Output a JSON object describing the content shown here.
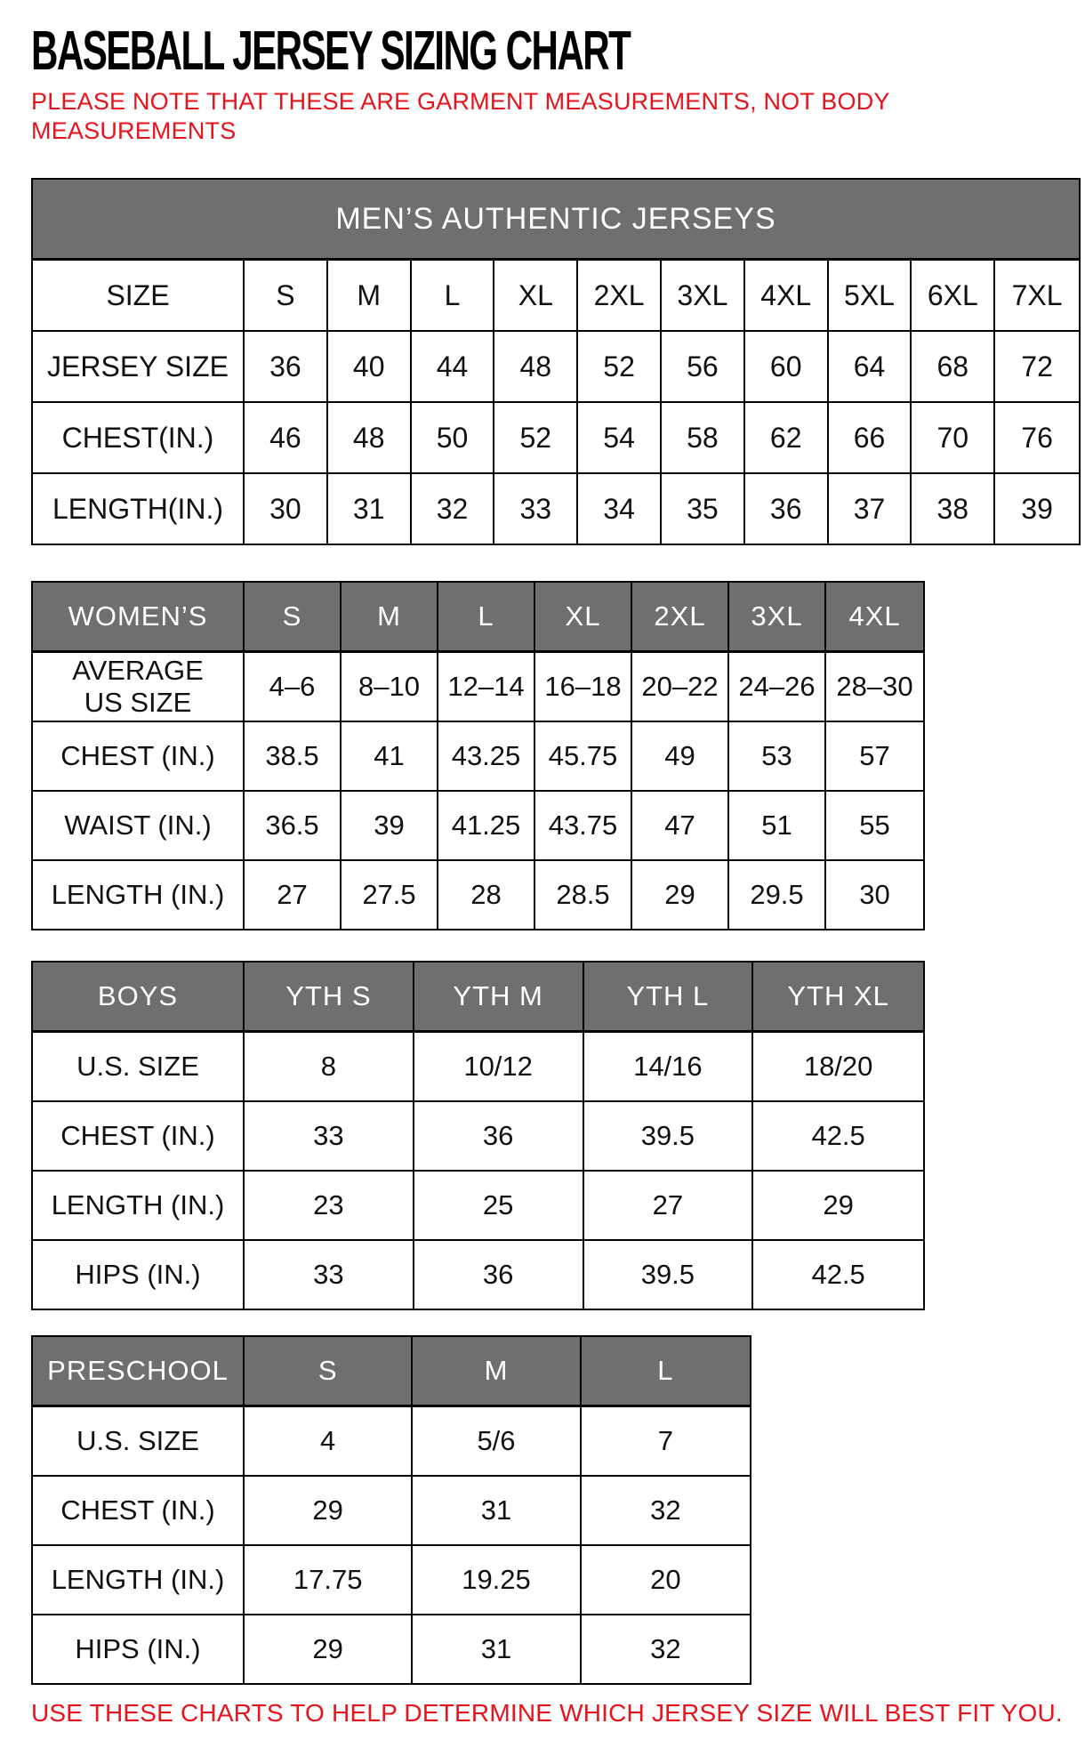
{
  "page": {
    "title": "BASEBALL JERSEY SIZING CHART",
    "note_line1": "PLEASE NOTE THAT THESE ARE GARMENT MEASUREMENTS, NOT BODY",
    "note_line2": "MEASUREMENTS",
    "footer": "USE THESE CHARTS TO HELP DETERMINE WHICH JERSEY SIZE WILL BEST FIT YOU.",
    "colors": {
      "accent_red": "#e8131b",
      "header_gray": "#6f6f6f",
      "border_black": "#000000",
      "background_white": "#ffffff"
    }
  },
  "tables": {
    "mens": {
      "title": "MEN’S AUTHENTIC JERSEYS",
      "size_row": {
        "label": "SIZE",
        "values": [
          "S",
          "M",
          "L",
          "XL",
          "2XL",
          "3XL",
          "4XL",
          "5XL",
          "6XL",
          "7XL"
        ]
      },
      "rows": [
        {
          "label": "JERSEY SIZE",
          "values": [
            "36",
            "40",
            "44",
            "48",
            "52",
            "56",
            "60",
            "64",
            "68",
            "72"
          ]
        },
        {
          "label": "CHEST(IN.)",
          "values": [
            "46",
            "48",
            "50",
            "52",
            "54",
            "58",
            "62",
            "66",
            "70",
            "76"
          ]
        },
        {
          "label": "LENGTH(IN.)",
          "values": [
            "30",
            "31",
            "32",
            "33",
            "34",
            "35",
            "36",
            "37",
            "38",
            "39"
          ]
        }
      ]
    },
    "womens": {
      "header_row": {
        "label": "WOMEN’S",
        "values": [
          "S",
          "M",
          "L",
          "XL",
          "2XL",
          "3XL",
          "4XL"
        ]
      },
      "rows": [
        {
          "label": "AVERAGE US SIZE",
          "values": [
            "4–6",
            "8–10",
            "12–14",
            "16–18",
            "20–22",
            "24–26",
            "28–30"
          ]
        },
        {
          "label": "CHEST (IN.)",
          "values": [
            "38.5",
            "41",
            "43.25",
            "45.75",
            "49",
            "53",
            "57"
          ]
        },
        {
          "label": "WAIST (IN.)",
          "values": [
            "36.5",
            "39",
            "41.25",
            "43.75",
            "47",
            "51",
            "55"
          ]
        },
        {
          "label": "LENGTH (IN.)",
          "values": [
            "27",
            "27.5",
            "28",
            "28.5",
            "29",
            "29.5",
            "30"
          ]
        }
      ]
    },
    "boys": {
      "header_row": {
        "label": "BOYS",
        "values": [
          "YTH S",
          "YTH M",
          "YTH L",
          "YTH XL"
        ]
      },
      "rows": [
        {
          "label": "U.S. SIZE",
          "values": [
            "8",
            "10/12",
            "14/16",
            "18/20"
          ]
        },
        {
          "label": "CHEST (IN.)",
          "values": [
            "33",
            "36",
            "39.5",
            "42.5"
          ]
        },
        {
          "label": "LENGTH (IN.)",
          "values": [
            "23",
            "25",
            "27",
            "29"
          ]
        },
        {
          "label": "HIPS (IN.)",
          "values": [
            "33",
            "36",
            "39.5",
            "42.5"
          ]
        }
      ]
    },
    "preschool": {
      "header_row": {
        "label": "PRESCHOOL",
        "values": [
          "S",
          "M",
          "L"
        ]
      },
      "rows": [
        {
          "label": "U.S. SIZE",
          "values": [
            "4",
            "5/6",
            "7"
          ]
        },
        {
          "label": "CHEST (IN.)",
          "values": [
            "29",
            "31",
            "32"
          ]
        },
        {
          "label": "LENGTH (IN.)",
          "values": [
            "17.75",
            "19.25",
            "20"
          ]
        },
        {
          "label": "HIPS (IN.)",
          "values": [
            "29",
            "31",
            "32"
          ]
        }
      ]
    }
  }
}
